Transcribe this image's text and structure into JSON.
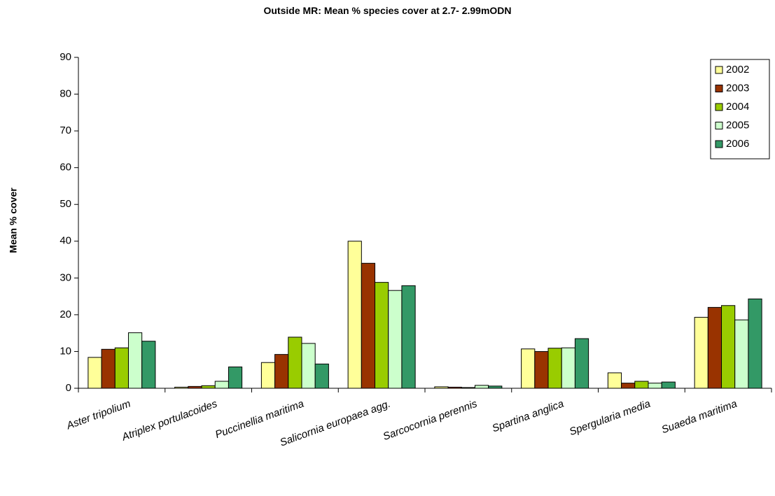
{
  "chart_data": {
    "type": "bar",
    "title": "Outside MR: Mean % species cover at 2.7- 2.99mODN",
    "xlabel": "",
    "ylabel": "Mean % cover",
    "ylim": [
      0,
      90
    ],
    "yticks": [
      0,
      10,
      20,
      30,
      40,
      50,
      60,
      70,
      80,
      90
    ],
    "grid": false,
    "legend_position": "top-right",
    "categories": [
      "Aster tripolium",
      "Atriplex portulacoides",
      "Puccinellia maritima",
      "Salicornia europaea agg.",
      "Sarcocornia perennis",
      "Spartina anglica",
      "Spergularia media",
      "Suaeda maritima"
    ],
    "series": [
      {
        "name": "2002",
        "color": "#ffff99",
        "values": [
          8.4,
          0.3,
          7.0,
          40.0,
          0.4,
          10.7,
          4.2,
          19.3
        ]
      },
      {
        "name": "2003",
        "color": "#993300",
        "values": [
          10.6,
          0.5,
          9.2,
          34.0,
          0.3,
          10.0,
          1.4,
          22.0
        ]
      },
      {
        "name": "2004",
        "color": "#99cc00",
        "values": [
          11.0,
          0.7,
          13.9,
          28.8,
          0.2,
          10.9,
          1.9,
          22.5
        ]
      },
      {
        "name": "2005",
        "color": "#ccffcc",
        "values": [
          15.1,
          1.9,
          12.2,
          26.6,
          0.8,
          11.0,
          1.4,
          18.6
        ]
      },
      {
        "name": "2006",
        "color": "#339966",
        "values": [
          12.8,
          5.8,
          6.6,
          27.9,
          0.6,
          13.5,
          1.7,
          24.3
        ]
      }
    ]
  }
}
